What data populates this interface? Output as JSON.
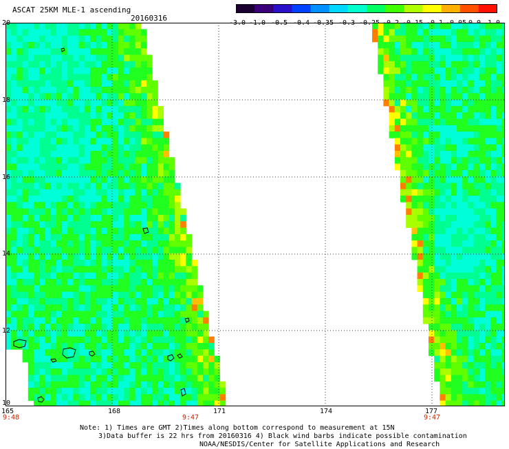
{
  "header": {
    "title": "ASCAT 25KM MLE-1 ascending",
    "date": "20160316"
  },
  "colorbar": {
    "labels": [
      "-3.0",
      "-1.0",
      "-0.5",
      "-0.4",
      "-0.35",
      "-0.3",
      "-0.25",
      "-0.2",
      "-0.15",
      "-0.1",
      "-0.05",
      "0.0",
      "1.0"
    ],
    "colors": [
      "#1a0030",
      "#3a0078",
      "#2a10c8",
      "#0040ff",
      "#0090ff",
      "#00d8ff",
      "#00ffcc",
      "#00ff60",
      "#40ff00",
      "#b0ff00",
      "#ffff00",
      "#ffb000",
      "#ff5000",
      "#ff1000"
    ]
  },
  "axes": {
    "y_ticks": [
      "20",
      "18",
      "16",
      "14",
      "12",
      "10"
    ],
    "x_ticks": [
      "165",
      "168",
      "171",
      "174",
      "177"
    ],
    "times": [
      "9:48",
      "9:47",
      "9:47"
    ]
  },
  "footer": {
    "line1": "Note: 1) Times are GMT 2)Times along bottom correspond to measurement at 15N",
    "line2": "3)Data buffer is 22 hrs from 20160316 4) Black wind barbs indicate possible contamination",
    "line3": "NOAA/NESDIS/Center for Satellite Applications and Research"
  },
  "map": {
    "lon_range": [
      165,
      179
    ],
    "lat_range": [
      10,
      20
    ],
    "swaths": [
      {
        "name": "west-swath",
        "value_range": "-0.3 to 0.0"
      },
      {
        "name": "east-swath",
        "value_range": "-0.3 to 0.0"
      }
    ],
    "land_outlines": "islands near 165-170E, 10-12N"
  }
}
